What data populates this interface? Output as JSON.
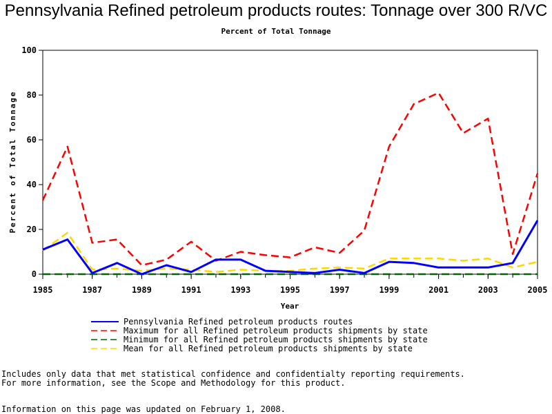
{
  "chart_data": {
    "type": "line",
    "title": "Pennsylvania Refined petroleum products routes: Tonnage over 300 R/VC",
    "subtitle": "Percent of Total Tonnage",
    "xlabel": "Year",
    "ylabel": "Percent of Total Tonnage",
    "xlim": [
      1985,
      2005
    ],
    "ylim": [
      0,
      100
    ],
    "x_ticks": [
      1985,
      1987,
      1989,
      1991,
      1993,
      1995,
      1997,
      1999,
      2001,
      2003,
      2005
    ],
    "y_ticks": [
      0,
      20,
      40,
      60,
      80,
      100
    ],
    "x": [
      1985,
      1986,
      1987,
      1988,
      1989,
      1990,
      1991,
      1992,
      1993,
      1994,
      1995,
      1996,
      1997,
      1998,
      1999,
      2000,
      2001,
      2002,
      2003,
      2004,
      2005
    ],
    "legend_position": "bottom",
    "series": [
      {
        "name": "Pennsylvania Refined petroleum products routes",
        "color": "#0000ff",
        "dash": "solid",
        "values": [
          11,
          15.5,
          0.5,
          5,
          0,
          4,
          1,
          6.5,
          6.5,
          1.5,
          1,
          0.5,
          2,
          0.5,
          5.5,
          5,
          3,
          3,
          3,
          5,
          24
        ]
      },
      {
        "name": "Maximum for all Refined petroleum products shipments by state",
        "color": "#ff0000",
        "dash": "dashed",
        "values": [
          33,
          57,
          14,
          15.5,
          4,
          6.5,
          14.5,
          6,
          10,
          8.5,
          7.5,
          12,
          9.5,
          19.5,
          57,
          76,
          81,
          63,
          69.5,
          9,
          45
        ]
      },
      {
        "name": "Minimum for all Refined petroleum products shipments by state",
        "color": "#006400",
        "dash": "dashed",
        "values": [
          0,
          0,
          0,
          0,
          0,
          0,
          0,
          0,
          0,
          0,
          0,
          0,
          0,
          0,
          0,
          0,
          0,
          0,
          0,
          0,
          0
        ]
      },
      {
        "name": "Mean for all Refined petroleum products shipments by state",
        "color": "#ffd700",
        "dash": "dashed",
        "values": [
          10.5,
          18.5,
          2,
          2.5,
          1.5,
          2.5,
          2,
          1,
          2,
          1.5,
          1.5,
          2.5,
          3,
          2.5,
          7,
          7,
          7,
          6,
          7,
          3,
          5.5
        ]
      }
    ]
  },
  "notes": {
    "line1": "Includes only data that met statistical confidence and confidentialty reporting requirements.",
    "line2": "For more information, see the Scope and Methodology for this product.",
    "updated": "Information on this page was updated on February 1, 2008."
  }
}
